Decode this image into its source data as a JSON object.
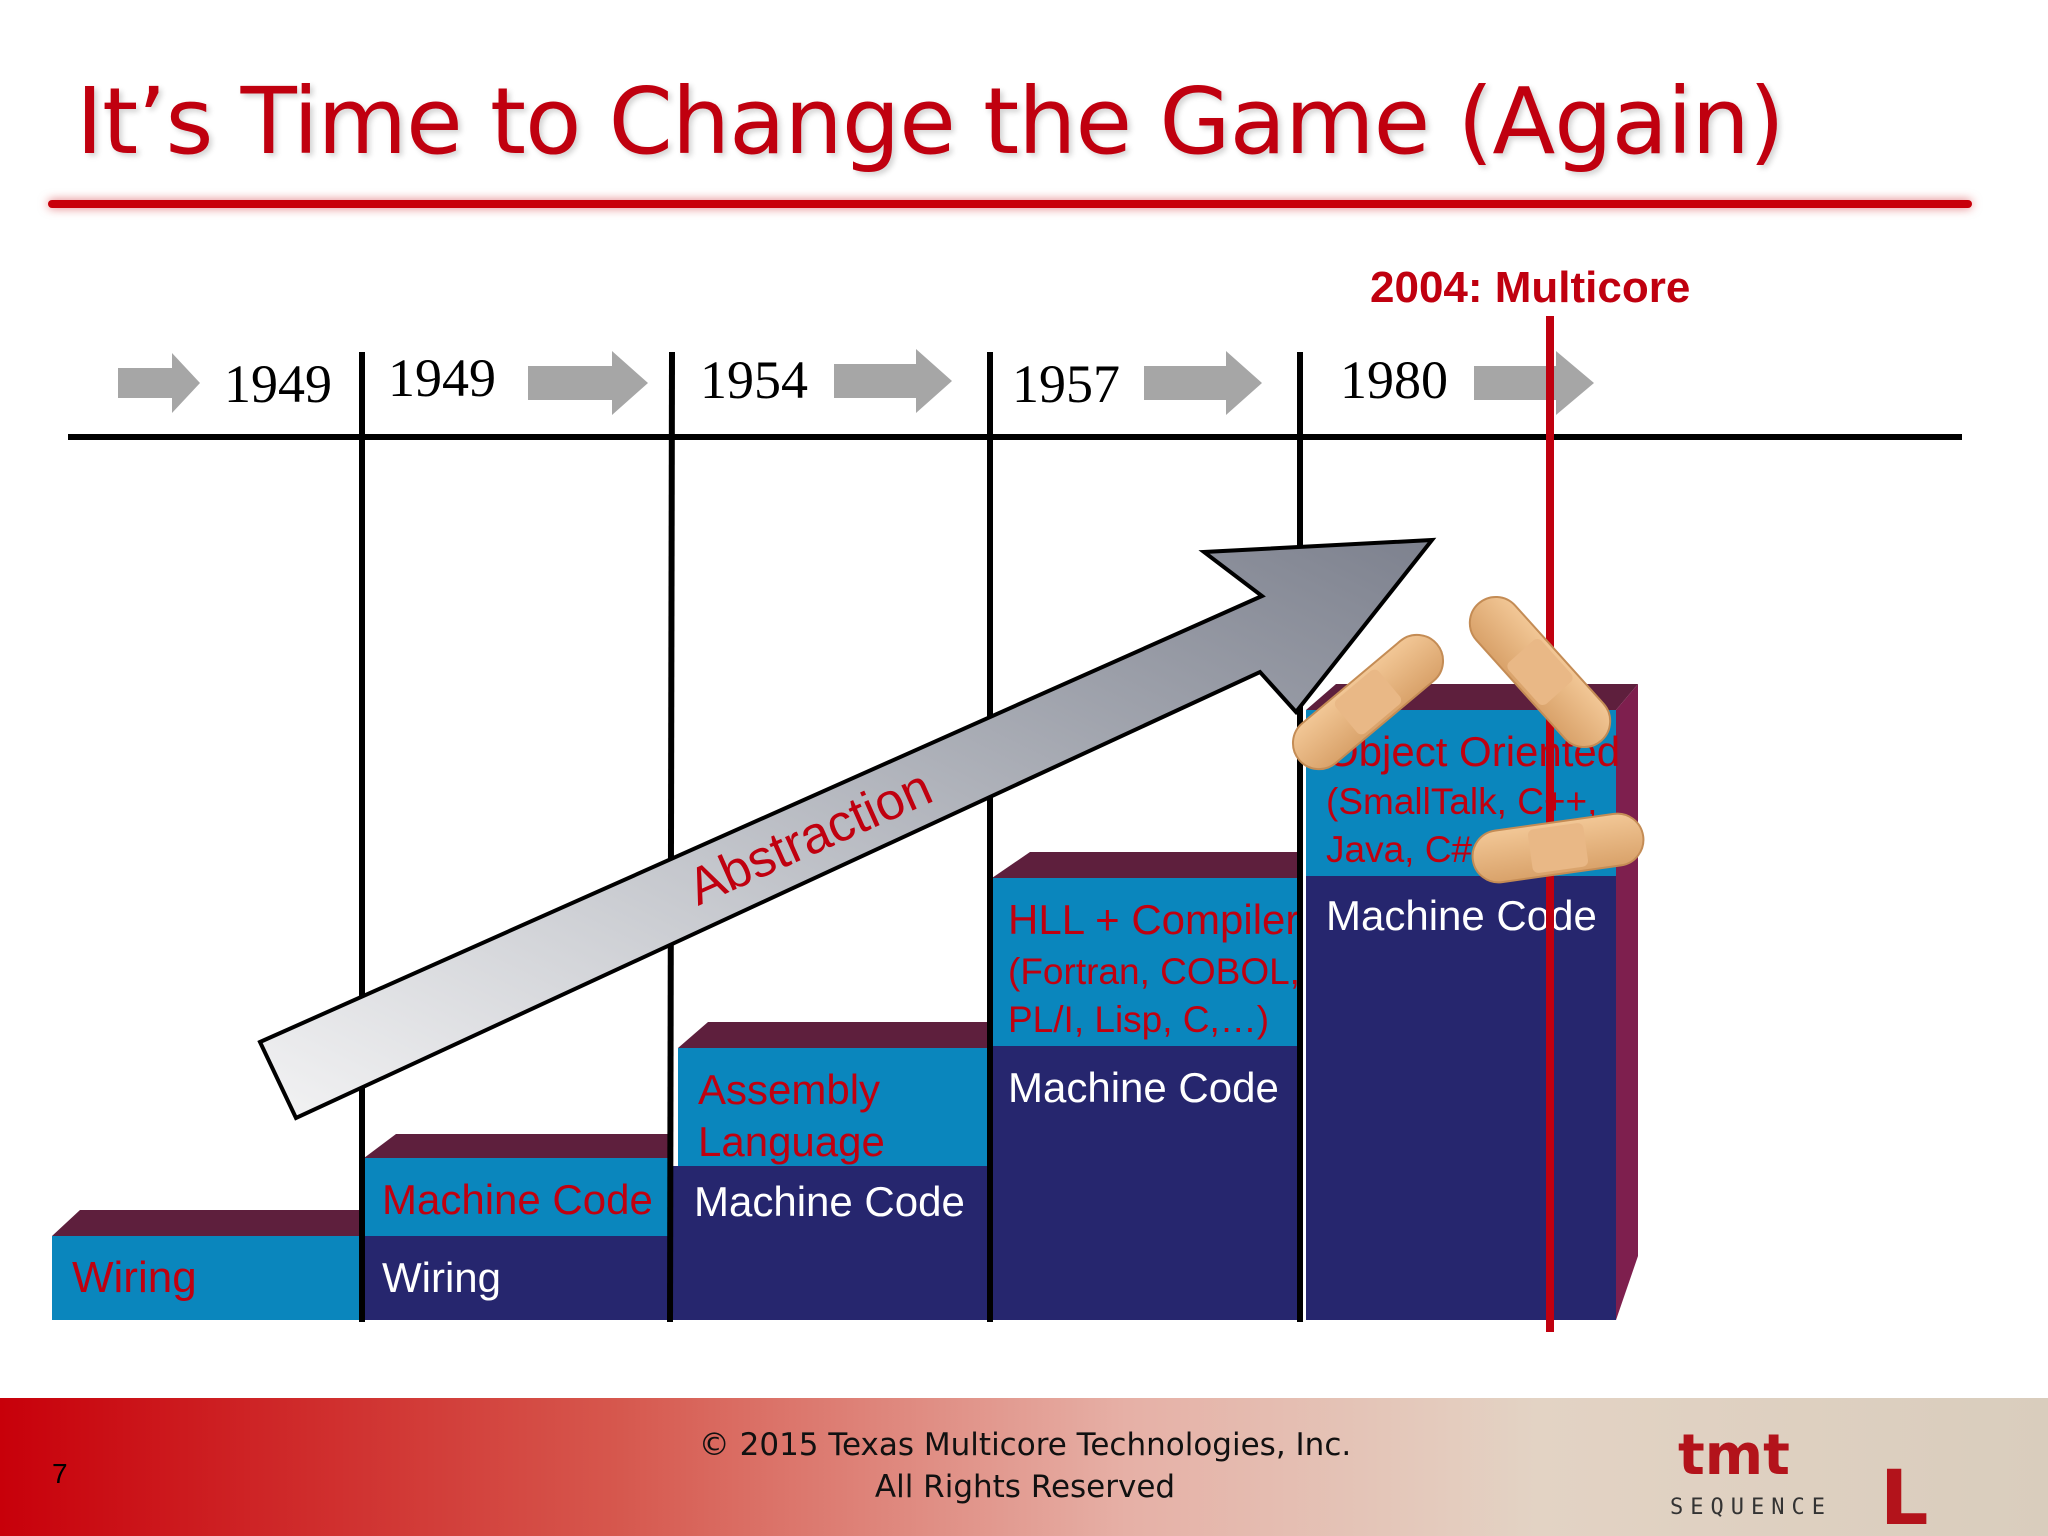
{
  "slide": {
    "title": "It’s Time to Change the Game (Again)",
    "slide_number": "7",
    "copyright_line1": "© 2015 Texas Multicore Technologies, Inc.",
    "copyright_line2": "All Rights Reserved",
    "logo_text_top": "tmt",
    "logo_text_bottom": "SEQUENCE",
    "logo_mark": "L"
  },
  "timeline": {
    "years": [
      "1949",
      "1949",
      "1954",
      "1957",
      "1980"
    ],
    "multicore_label": "2004: Multicore"
  },
  "steps": [
    {
      "top_label": "Wiring",
      "bottom_label": ""
    },
    {
      "top_label": "Machine Code",
      "bottom_label": "Wiring"
    },
    {
      "top_label_line1": "Assembly",
      "top_label_line2": "Language",
      "bottom_label": "Machine Code"
    },
    {
      "top_label_line1": "HLL + Compiler",
      "top_label_line2": "(Fortran, COBOL,",
      "top_label_line3": "PL/I,  Lisp, C,…)",
      "bottom_label": "Machine Code"
    },
    {
      "top_label_line1": "Object Oriented",
      "top_label_line2": "(SmallTalk, C++,",
      "top_label_line3": "Java, C#,)",
      "bottom_label": "Machine Code"
    }
  ],
  "arrow": {
    "label": "Abstraction"
  },
  "colors": {
    "accent_red": "#c0000f",
    "top_block": "#0a86bd",
    "bottom_block": "#26266e",
    "block_cap": "#5e1f3d",
    "arrow_gray": "#a8acb6"
  }
}
